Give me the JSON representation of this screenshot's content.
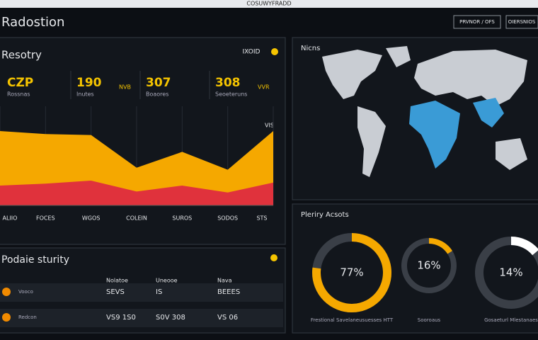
{
  "header": {
    "title": "Radostion",
    "center_text": "COSUWYFRADD",
    "buttons": [
      "PRVNOR / OFS",
      "OIERSNIOS"
    ]
  },
  "security_panel": {
    "title": "Resotry",
    "badge": "IXOID",
    "kpis": [
      {
        "value": "CZP",
        "label": "Rossnas",
        "tag": ""
      },
      {
        "value": "190",
        "label": "Inutes",
        "tag": "NVB"
      },
      {
        "value": "307",
        "label": "Boaores",
        "tag": ""
      },
      {
        "value": "308",
        "label": "Seoeteruns",
        "tag": "VVR"
      }
    ],
    "corner_label": "VIS",
    "chart_data": {
      "type": "area",
      "categories": [
        "ALIIO",
        "FOCES",
        "WGOS",
        "COLEIN",
        "SUROS",
        "SODOS",
        "STS"
      ],
      "series": [
        {
          "name": "Yellow",
          "color": "#f5a800",
          "values": [
            75,
            72,
            71,
            38,
            54,
            36,
            75
          ]
        },
        {
          "name": "Red",
          "color": "#e0323c",
          "values": [
            20,
            22,
            25,
            14,
            20,
            13,
            23
          ]
        }
      ],
      "ylim": [
        0,
        100
      ]
    }
  },
  "table": {
    "title": "Podaie sturity",
    "columns": [
      "Nolatoe",
      "Uneooe",
      "Nava"
    ],
    "rows": [
      [
        "Vooco",
        "SEVS",
        "IS",
        "BEEES"
      ],
      [
        "Redcon",
        "VS9 1S0",
        "S0V 308",
        "VS 06"
      ]
    ]
  },
  "map_panel": {
    "title": "Nicns"
  },
  "assets_panel": {
    "title": "Pleriry Acsots",
    "chart_data": {
      "type": "donut",
      "values": [
        77,
        16,
        14
      ],
      "value_labels": [
        "77%",
        "16%",
        "14%"
      ],
      "colors": [
        "#f5a800",
        "#f5a800",
        "#ffffff"
      ],
      "labels": [
        "Frestional Savelaneusuesses HTT",
        "Sooroaus",
        "Gosaeturl Mlestanaes"
      ]
    }
  }
}
